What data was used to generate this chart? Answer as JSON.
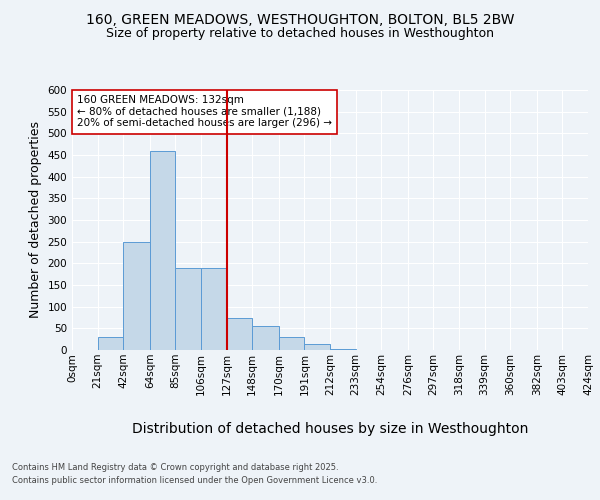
{
  "title1": "160, GREEN MEADOWS, WESTHOUGHTON, BOLTON, BL5 2BW",
  "title2": "Size of property relative to detached houses in Westhoughton",
  "xlabel": "Distribution of detached houses by size in Westhoughton",
  "ylabel": "Number of detached properties",
  "footer1": "Contains HM Land Registry data © Crown copyright and database right 2025.",
  "footer2": "Contains public sector information licensed under the Open Government Licence v3.0.",
  "annotation_title": "160 GREEN MEADOWS: 132sqm",
  "annotation_line1": "← 80% of detached houses are smaller (1,188)",
  "annotation_line2": "20% of semi-detached houses are larger (296) →",
  "bar_color": "#c5d8e8",
  "bar_edge_color": "#5b9bd5",
  "vline_color": "#cc0000",
  "vline_x": 127,
  "bin_edges": [
    0,
    21,
    42,
    64,
    85,
    106,
    127,
    148,
    170,
    191,
    212,
    233,
    254,
    276,
    297,
    318,
    339,
    360,
    382,
    403,
    424
  ],
  "bar_heights": [
    0,
    30,
    250,
    460,
    190,
    190,
    75,
    55,
    30,
    15,
    3,
    1,
    0,
    1,
    0,
    0,
    0,
    0,
    0,
    1
  ],
  "ylim": [
    0,
    600
  ],
  "yticks": [
    0,
    50,
    100,
    150,
    200,
    250,
    300,
    350,
    400,
    450,
    500,
    550,
    600
  ],
  "bg_color": "#eef3f8",
  "plot_bg_color": "#eef3f8",
  "grid_color": "#ffffff",
  "title_fontsize": 10,
  "subtitle_fontsize": 9,
  "axis_label_fontsize": 9,
  "tick_fontsize": 7.5,
  "footer_fontsize": 6,
  "annotation_fontsize": 7.5
}
